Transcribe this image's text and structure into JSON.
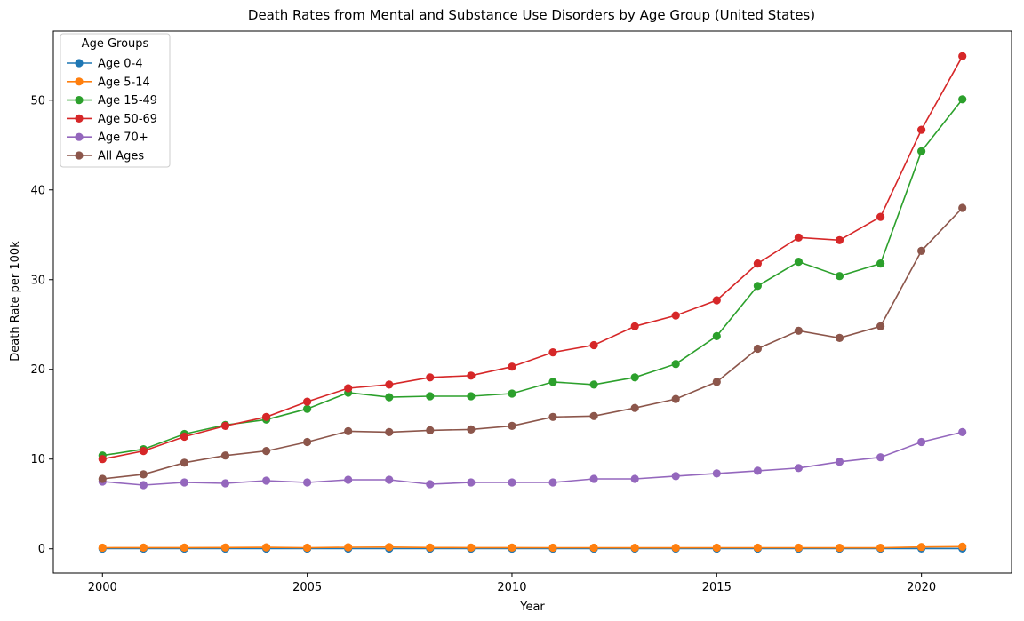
{
  "chart_data": {
    "type": "line",
    "title": "Death Rates from Mental and Substance Use Disorders by Age Group (United States)",
    "xlabel": "Year",
    "ylabel": "Death Rate per 100k",
    "xlim": [
      1998.8,
      2022.2
    ],
    "ylim": [
      -2.7,
      57.7
    ],
    "xticks": [
      2000,
      2005,
      2010,
      2015,
      2020
    ],
    "yticks": [
      0,
      10,
      20,
      30,
      40,
      50
    ],
    "grid": false,
    "legend": {
      "title": "Age Groups",
      "placement": "top-left"
    },
    "x": [
      2000,
      2001,
      2002,
      2003,
      2004,
      2005,
      2006,
      2007,
      2008,
      2009,
      2010,
      2011,
      2012,
      2013,
      2014,
      2015,
      2016,
      2017,
      2018,
      2019,
      2020,
      2021
    ],
    "series": [
      {
        "name": "Age 0-4",
        "color": "#1f77b4",
        "values": [
          0.02,
          0.02,
          0.02,
          0.02,
          0.02,
          0.02,
          0.02,
          0.02,
          0.02,
          0.02,
          0.02,
          0.02,
          0.02,
          0.02,
          0.02,
          0.02,
          0.02,
          0.02,
          0.02,
          0.02,
          0.03,
          0.03
        ]
      },
      {
        "name": "Age 5-14",
        "color": "#ff7f0e",
        "values": [
          0.12,
          0.13,
          0.13,
          0.14,
          0.16,
          0.12,
          0.17,
          0.19,
          0.14,
          0.13,
          0.13,
          0.12,
          0.12,
          0.11,
          0.11,
          0.12,
          0.12,
          0.12,
          0.11,
          0.11,
          0.2,
          0.24
        ]
      },
      {
        "name": "Age 15-49",
        "color": "#2ca02c",
        "values": [
          10.4,
          11.1,
          12.8,
          13.8,
          14.4,
          15.6,
          17.4,
          16.9,
          17.0,
          17.0,
          17.3,
          18.6,
          18.3,
          19.1,
          20.6,
          23.7,
          29.3,
          32.0,
          30.4,
          31.8,
          44.3,
          50.1
        ]
      },
      {
        "name": "Age 50-69",
        "color": "#d62728",
        "values": [
          10.0,
          10.9,
          12.5,
          13.7,
          14.7,
          16.4,
          17.9,
          18.3,
          19.1,
          19.3,
          20.3,
          21.9,
          22.7,
          24.8,
          26.0,
          27.7,
          31.8,
          34.7,
          34.4,
          37.0,
          46.7,
          54.9
        ]
      },
      {
        "name": "Age 70+",
        "color": "#9467bd",
        "values": [
          7.5,
          7.1,
          7.4,
          7.3,
          7.6,
          7.4,
          7.7,
          7.7,
          7.2,
          7.4,
          7.4,
          7.4,
          7.8,
          7.8,
          8.1,
          8.4,
          8.7,
          9.0,
          9.7,
          10.2,
          11.9,
          13.0
        ]
      },
      {
        "name": "All Ages",
        "color": "#8c564b",
        "values": [
          7.8,
          8.3,
          9.6,
          10.4,
          10.9,
          11.9,
          13.1,
          13.0,
          13.2,
          13.3,
          13.7,
          14.7,
          14.8,
          15.7,
          16.7,
          18.6,
          22.3,
          24.3,
          23.5,
          24.8,
          33.2,
          38.0
        ]
      }
    ]
  }
}
